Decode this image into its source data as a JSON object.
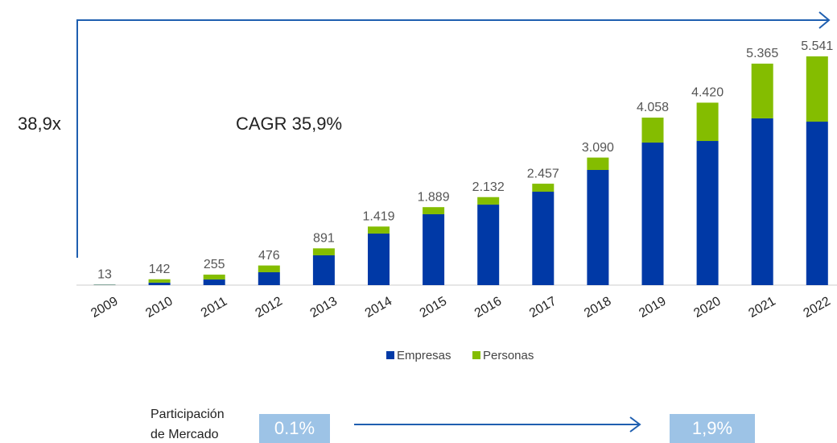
{
  "chart_data": {
    "type": "stacked_bar",
    "annotations": [
      "38,9x",
      "CAGR 35,9%"
    ],
    "categories": [
      "2009",
      "2010",
      "2011",
      "2012",
      "2013",
      "2014",
      "2015",
      "2016",
      "2017",
      "2018",
      "2019",
      "2020",
      "2021",
      "2022"
    ],
    "series": [
      {
        "name": "Empresas",
        "color": "#0039a6",
        "values": [
          8,
          60,
          136,
          312,
          722,
          1249,
          1717,
          1950,
          2263,
          2790,
          3453,
          3492,
          4040,
          3960
        ]
      },
      {
        "name": "Personas",
        "color": "#84bd00",
        "values": [
          5,
          82,
          119,
          164,
          169,
          170,
          172,
          182,
          194,
          300,
          605,
          928,
          1325,
          1581
        ]
      }
    ],
    "totals": {
      "values": [
        13,
        142,
        255,
        476,
        891,
        1419,
        1889,
        2132,
        2457,
        3090,
        4058,
        4420,
        5365,
        5541
      ],
      "value_labels": [
        "13",
        "142",
        "255",
        "476",
        "891",
        "1.419",
        "1.889",
        "2.132",
        "2.457",
        "3.090",
        "4.058",
        "4.420",
        "5.365",
        "5.541"
      ]
    },
    "market_share": {
      "label_lines": [
        "Participación",
        "de Mercado"
      ],
      "start": "0.1%",
      "end": "1,9%"
    }
  }
}
